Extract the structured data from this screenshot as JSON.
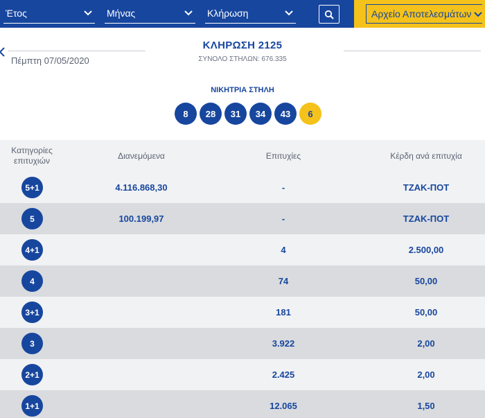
{
  "filters": {
    "year": "Έτος",
    "month": "Μήνας",
    "draw": "Κλήρωση",
    "archive": "Αρχείο Αποτελεσμάτων"
  },
  "draw": {
    "date": "Πέμπτη 07/05/2020",
    "title": "ΚΛΗΡΩΣΗ 2125",
    "subtitle": "ΣΥΝΟΛΟ ΣΤΗΛΩΝ: 676.335"
  },
  "winning": {
    "label": "ΝΙΚΗΤΡΙΑ ΣΤΗΛΗ",
    "numbers": [
      "8",
      "28",
      "31",
      "34",
      "43"
    ],
    "bonus": "6"
  },
  "table": {
    "headers": {
      "category_line1": "Κατηγορίες",
      "category_line2": "επιτυχιών",
      "distributed": "Διανεμόμενα",
      "winners": "Επιτυχίες",
      "prize": "Κέρδη ανά επιτυχία"
    },
    "rows": [
      {
        "category": "5+1",
        "distributed": "4.116.868,30",
        "winners": "-",
        "prize": "ΤΖΑΚ-ΠΟΤ"
      },
      {
        "category": "5",
        "distributed": "100.199,97",
        "winners": "-",
        "prize": "ΤΖΑΚ-ΠΟΤ"
      },
      {
        "category": "4+1",
        "distributed": "",
        "winners": "4",
        "prize": "2.500,00"
      },
      {
        "category": "4",
        "distributed": "",
        "winners": "74",
        "prize": "50,00"
      },
      {
        "category": "3+1",
        "distributed": "",
        "winners": "181",
        "prize": "50,00"
      },
      {
        "category": "3",
        "distributed": "",
        "winners": "3.922",
        "prize": "2,00"
      },
      {
        "category": "2+1",
        "distributed": "",
        "winners": "2.425",
        "prize": "2,00"
      },
      {
        "category": "1+1",
        "distributed": "",
        "winners": "12.065",
        "prize": "1,50"
      }
    ]
  },
  "colors": {
    "primary": "#17469e",
    "accent": "#f5c21b",
    "row_light": "#f1f2f4",
    "row_dark": "#d9dbde"
  }
}
